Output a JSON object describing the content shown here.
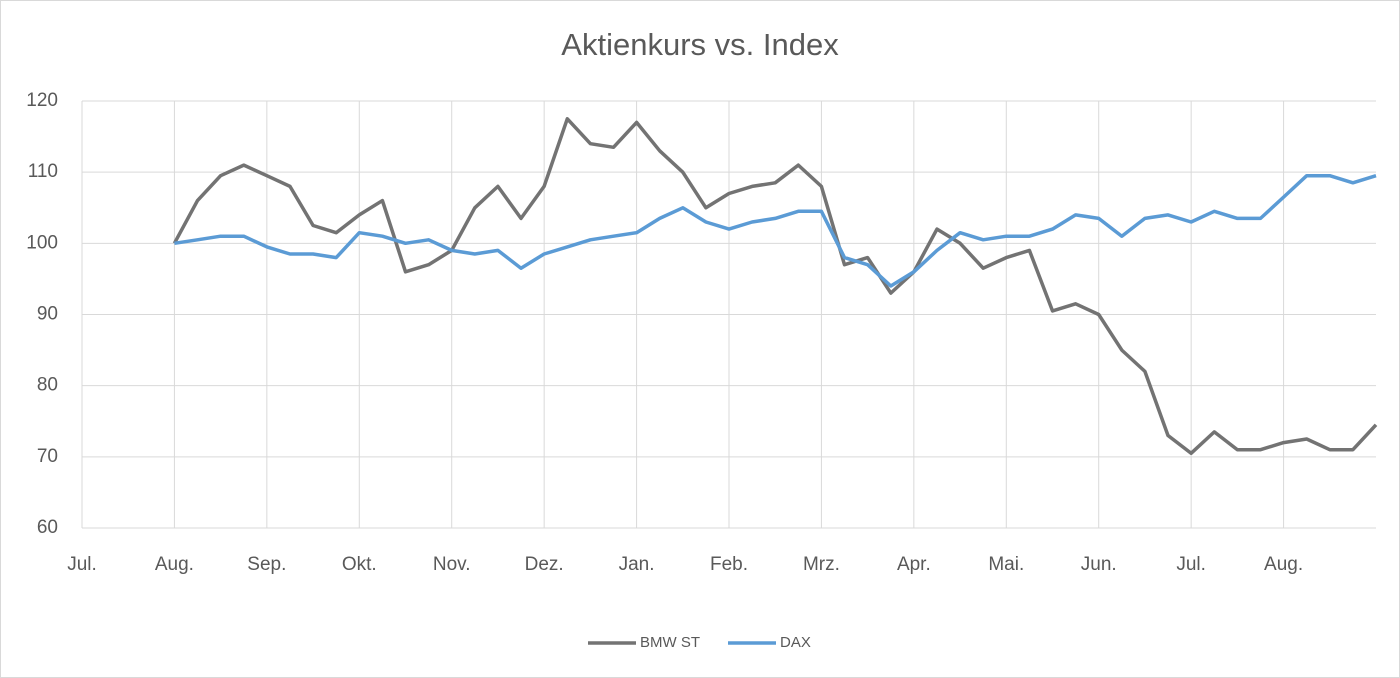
{
  "chart_data": {
    "type": "line",
    "title": "Aktienkurs vs. Index",
    "categories": [
      "Jul.",
      null,
      null,
      null,
      "Aug.",
      null,
      null,
      null,
      "Sep.",
      null,
      null,
      null,
      "Okt.",
      null,
      null,
      null,
      "Nov.",
      null,
      null,
      null,
      "Dez.",
      null,
      null,
      null,
      "Jan.",
      null,
      null,
      null,
      "Feb.",
      null,
      null,
      null,
      "Mrz.",
      null,
      null,
      null,
      "Apr.",
      null,
      null,
      null,
      "Mai.",
      null,
      null,
      null,
      "Jun.",
      null,
      null,
      null,
      "Jul.",
      null,
      null,
      null,
      "Aug.",
      null,
      null,
      null,
      null
    ],
    "series": [
      {
        "name": "BMW ST",
        "color": "#737373",
        "values": [
          null,
          null,
          null,
          null,
          100,
          106,
          109.5,
          111,
          109.5,
          108,
          102.5,
          101.5,
          104,
          106,
          96,
          97,
          99,
          105,
          108,
          103.5,
          108,
          117.5,
          114,
          113.5,
          117,
          113,
          110,
          105,
          107,
          108,
          108.5,
          111,
          108,
          97,
          98,
          93,
          96,
          102,
          100,
          96.5,
          98,
          99,
          90.5,
          91.5,
          90,
          85,
          82,
          73,
          70.5,
          73.5,
          71,
          71,
          72,
          72.5,
          71,
          71,
          74.5
        ]
      },
      {
        "name": "DAX",
        "color": "#5b9bd5",
        "values": [
          null,
          null,
          null,
          null,
          100,
          100.5,
          101,
          101,
          99.5,
          98.5,
          98.5,
          98,
          101.5,
          101,
          100,
          100.5,
          99,
          98.5,
          99,
          96.5,
          98.5,
          99.5,
          100.5,
          101,
          101.5,
          103.5,
          105,
          103,
          102,
          103,
          103.5,
          104.5,
          104.5,
          98,
          97,
          94,
          96,
          99,
          101.5,
          100.5,
          101,
          101,
          102,
          104,
          103.5,
          101,
          103.5,
          104,
          103,
          104.5,
          103.5,
          103.5,
          106.5,
          109.5,
          109.5,
          108.5,
          109.5
        ]
      }
    ],
    "ylim": [
      60,
      120
    ],
    "yticks": [
      60,
      70,
      80,
      90,
      100,
      110,
      120
    ],
    "grid": true,
    "legend": "bottom"
  }
}
